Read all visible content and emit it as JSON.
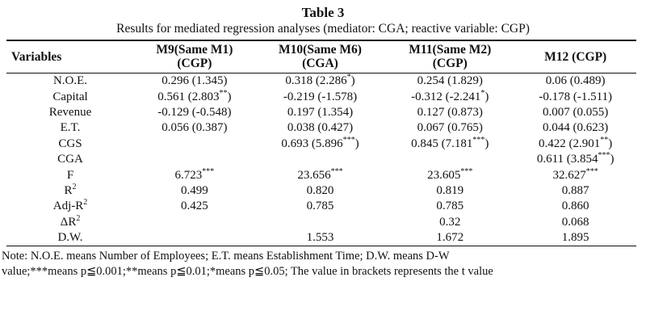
{
  "title": "Table 3",
  "subtitle": "Results for mediated regression analyses (mediator: CGA; reactive variable: CGP)",
  "table": {
    "headers": [
      {
        "line1": "Variables",
        "line2": ""
      },
      {
        "line1": "M9(Same M1)",
        "line2": "(CGP)"
      },
      {
        "line1": "M10(Same M6)",
        "line2": "(CGA)"
      },
      {
        "line1": "M11(Same M2)",
        "line2": "(CGP)"
      },
      {
        "line1": "M12 (CGP)",
        "line2": ""
      }
    ],
    "rows": [
      {
        "var": "N.O.E.",
        "var_sup": "",
        "cells": [
          {
            "main": "0.296 (1.345)",
            "sup": "",
            "tail": ""
          },
          {
            "main": "0.318 (2.286",
            "sup": "*",
            "tail": ")"
          },
          {
            "main": "0.254 (1.829)",
            "sup": "",
            "tail": ""
          },
          {
            "main": "0.06 (0.489)",
            "sup": "",
            "tail": ""
          }
        ]
      },
      {
        "var": "Capital",
        "var_sup": "",
        "cells": [
          {
            "main": "0.561 (2.803",
            "sup": "**",
            "tail": ")"
          },
          {
            "main": "-0.219 (-1.578)",
            "sup": "",
            "tail": ""
          },
          {
            "main": "-0.312 (-2.241",
            "sup": "*",
            "tail": ")"
          },
          {
            "main": "-0.178 (-1.511)",
            "sup": "",
            "tail": ""
          }
        ]
      },
      {
        "var": "Revenue",
        "var_sup": "",
        "cells": [
          {
            "main": "-0.129 (-0.548)",
            "sup": "",
            "tail": ""
          },
          {
            "main": "0.197 (1.354)",
            "sup": "",
            "tail": ""
          },
          {
            "main": "0.127 (0.873)",
            "sup": "",
            "tail": ""
          },
          {
            "main": "0.007 (0.055)",
            "sup": "",
            "tail": ""
          }
        ]
      },
      {
        "var": "E.T.",
        "var_sup": "",
        "cells": [
          {
            "main": "0.056 (0.387)",
            "sup": "",
            "tail": ""
          },
          {
            "main": "0.038 (0.427)",
            "sup": "",
            "tail": ""
          },
          {
            "main": "0.067 (0.765)",
            "sup": "",
            "tail": ""
          },
          {
            "main": "0.044 (0.623)",
            "sup": "",
            "tail": ""
          }
        ]
      },
      {
        "var": "CGS",
        "var_sup": "",
        "cells": [
          {
            "main": "",
            "sup": "",
            "tail": ""
          },
          {
            "main": "0.693 (5.896",
            "sup": "***",
            "tail": ")"
          },
          {
            "main": "0.845 (7.181",
            "sup": "***",
            "tail": ")"
          },
          {
            "main": "0.422 (2.901",
            "sup": "**",
            "tail": ")"
          }
        ]
      },
      {
        "var": "CGA",
        "var_sup": "",
        "cells": [
          {
            "main": "",
            "sup": "",
            "tail": ""
          },
          {
            "main": "",
            "sup": "",
            "tail": ""
          },
          {
            "main": "",
            "sup": "",
            "tail": ""
          },
          {
            "main": "0.611 (3.854",
            "sup": "***",
            "tail": ")"
          }
        ]
      },
      {
        "var": "F",
        "var_sup": "",
        "cells": [
          {
            "main": "6.723",
            "sup": "***",
            "tail": ""
          },
          {
            "main": "23.656",
            "sup": "***",
            "tail": ""
          },
          {
            "main": "23.605",
            "sup": "***",
            "tail": ""
          },
          {
            "main": "32.627",
            "sup": "***",
            "tail": ""
          }
        ]
      },
      {
        "var": "R",
        "var_sup": "2",
        "cells": [
          {
            "main": "0.499",
            "sup": "",
            "tail": ""
          },
          {
            "main": "0.820",
            "sup": "",
            "tail": ""
          },
          {
            "main": "0.819",
            "sup": "",
            "tail": ""
          },
          {
            "main": "0.887",
            "sup": "",
            "tail": ""
          }
        ]
      },
      {
        "var": "Adj-R",
        "var_sup": "2",
        "cells": [
          {
            "main": "0.425",
            "sup": "",
            "tail": ""
          },
          {
            "main": "0.785",
            "sup": "",
            "tail": ""
          },
          {
            "main": "0.785",
            "sup": "",
            "tail": ""
          },
          {
            "main": "0.860",
            "sup": "",
            "tail": ""
          }
        ]
      },
      {
        "var": "ΔR",
        "var_sup": "2",
        "cells": [
          {
            "main": "",
            "sup": "",
            "tail": ""
          },
          {
            "main": "",
            "sup": "",
            "tail": ""
          },
          {
            "main": "0.32",
            "sup": "",
            "tail": ""
          },
          {
            "main": "0.068",
            "sup": "",
            "tail": ""
          }
        ]
      },
      {
        "var": "D.W.",
        "var_sup": "",
        "cells": [
          {
            "main": "",
            "sup": "",
            "tail": ""
          },
          {
            "main": "1.553",
            "sup": "",
            "tail": ""
          },
          {
            "main": "1.672",
            "sup": "",
            "tail": ""
          },
          {
            "main": "1.895",
            "sup": "",
            "tail": ""
          }
        ]
      }
    ]
  },
  "note": {
    "line1": "Note: N.O.E. means Number of Employees; E.T. means Establishment Time; D.W. means D-W",
    "line2": "value;***means p≦0.001;**means p≦0.01;*means p≦0.05; The value in brackets represents the t value"
  }
}
